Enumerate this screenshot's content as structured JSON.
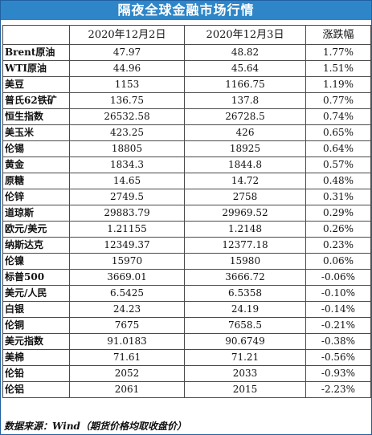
{
  "title": "隔夜全球金融市场行情",
  "headers": [
    "",
    "2020年12月2日",
    "2020年12月3日",
    "涨跌幅"
  ],
  "rows": [
    {
      "name": "Brent原油",
      "d1": "47.97",
      "d2": "48.82",
      "chg": "1.77%"
    },
    {
      "name": "WTI原油",
      "d1": "44.96",
      "d2": "45.64",
      "chg": "1.51%"
    },
    {
      "name": "美豆",
      "d1": "1153",
      "d2": "1166.75",
      "chg": "1.19%"
    },
    {
      "name": "普氏62铁矿",
      "d1": "136.75",
      "d2": "137.8",
      "chg": "0.77%"
    },
    {
      "name": "恒生指数",
      "d1": "26532.58",
      "d2": "26728.5",
      "chg": "0.74%"
    },
    {
      "name": "美玉米",
      "d1": "423.25",
      "d2": "426",
      "chg": "0.65%"
    },
    {
      "name": "伦锡",
      "d1": "18805",
      "d2": "18925",
      "chg": "0.64%"
    },
    {
      "name": "黄金",
      "d1": "1834.3",
      "d2": "1844.8",
      "chg": "0.57%"
    },
    {
      "name": "原糖",
      "d1": "14.65",
      "d2": "14.72",
      "chg": "0.48%"
    },
    {
      "name": "伦锌",
      "d1": "2749.5",
      "d2": "2758",
      "chg": "0.31%"
    },
    {
      "name": "道琼斯",
      "d1": "29883.79",
      "d2": "29969.52",
      "chg": "0.29%"
    },
    {
      "name": "欧元/美元",
      "d1": "1.21155",
      "d2": "1.2148",
      "chg": "0.26%"
    },
    {
      "name": "纳斯达克",
      "d1": "12349.37",
      "d2": "12377.18",
      "chg": "0.23%"
    },
    {
      "name": "伦镍",
      "d1": "15970",
      "d2": "15980",
      "chg": "0.06%"
    },
    {
      "name": "标普500",
      "d1": "3669.01",
      "d2": "3666.72",
      "chg": "-0.06%"
    },
    {
      "name": "美元/人民",
      "d1": "6.5425",
      "d2": "6.5358",
      "chg": "-0.10%"
    },
    {
      "name": "白银",
      "d1": "24.23",
      "d2": "24.19",
      "chg": "-0.14%"
    },
    {
      "name": "伦铜",
      "d1": "7675",
      "d2": "7658.5",
      "chg": "-0.21%"
    },
    {
      "name": "美元指数",
      "d1": "91.0183",
      "d2": "90.6749",
      "chg": "-0.38%"
    },
    {
      "name": "美棉",
      "d1": "71.61",
      "d2": "71.21",
      "chg": "-0.56%"
    },
    {
      "name": "伦铅",
      "d1": "2052",
      "d2": "2033",
      "chg": "-0.93%"
    },
    {
      "name": "伦铝",
      "d1": "2061",
      "d2": "2015",
      "chg": "-2.23%"
    }
  ],
  "footer": "数据来源：Wind（期货价格均取收盘价）",
  "colors": {
    "title_bg": "#2e86c9",
    "title_text": "#ffffff",
    "border": "#4a4a4a"
  }
}
